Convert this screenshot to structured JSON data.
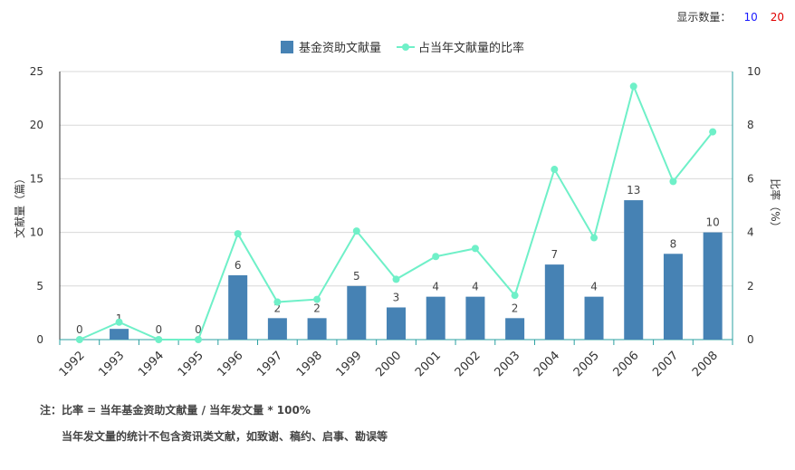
{
  "display_count": {
    "label": "显示数量：",
    "options": [
      {
        "text": "10",
        "color": "#1a1aff"
      },
      {
        "text": "20",
        "color": "#e00000"
      }
    ]
  },
  "notes": {
    "line1": "注：比率 = 当年基金资助文献量 / 当年发文量 * 100%",
    "line2": "当年发文量的统计不包含资讯类文献，如致谢、稿约、启事、勘误等"
  },
  "chart_data": {
    "type": "bar",
    "categories": [
      "1992",
      "1993",
      "1994",
      "1995",
      "1996",
      "1997",
      "1998",
      "1999",
      "2000",
      "2001",
      "2002",
      "2003",
      "2004",
      "2005",
      "2006",
      "2007",
      "2008"
    ],
    "series": [
      {
        "name": "基金资助文献量",
        "type": "bar",
        "axis": "left",
        "color": "#4682b4",
        "values": [
          0,
          1,
          0,
          0,
          6,
          2,
          2,
          5,
          3,
          4,
          4,
          2,
          7,
          4,
          13,
          8,
          10
        ]
      },
      {
        "name": "占当年文献量的比率",
        "type": "line",
        "axis": "right",
        "color": "#6ff0c8",
        "values": [
          0,
          0.65,
          0,
          0,
          3.95,
          1.4,
          1.5,
          4.05,
          2.25,
          3.1,
          3.4,
          1.65,
          6.35,
          3.8,
          9.45,
          5.9,
          7.75
        ]
      }
    ],
    "ylabel": "文献量（篇）",
    "y2label": "比率（%）",
    "ylim": [
      0,
      25
    ],
    "y2lim": [
      0,
      10
    ],
    "yticks": [
      0,
      5,
      10,
      15,
      20,
      25
    ],
    "y2ticks": [
      0,
      2,
      4,
      6,
      8,
      10
    ],
    "grid": true,
    "legend_position": "top-center"
  }
}
